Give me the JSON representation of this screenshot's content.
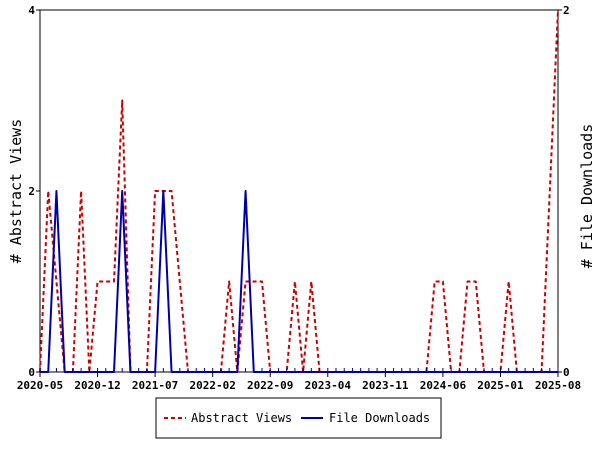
{
  "chart_data": {
    "type": "line",
    "x_tick_labels": [
      "2020-05",
      "2020-12",
      "2021-07",
      "2022-02",
      "2022-09",
      "2023-04",
      "2023-11",
      "2024-06",
      "2025-01",
      "2025-08"
    ],
    "left_axis": {
      "label": "# Abstract Views",
      "range": [
        0,
        4
      ],
      "tick_labels": [
        "0",
        "2",
        "4"
      ]
    },
    "right_axis": {
      "label": "# File Downloads",
      "range": [
        0,
        2
      ],
      "tick_labels": [
        "0",
        "2"
      ]
    },
    "series": [
      {
        "name": "Abstract Views",
        "axis": "left",
        "color": "#cc0000",
        "style": "dashed",
        "x": [
          "2020-05",
          "2020-06",
          "2020-07",
          "2020-08",
          "2020-09",
          "2020-10",
          "2020-11",
          "2020-12",
          "2021-01",
          "2021-02",
          "2021-03",
          "2021-04",
          "2021-05",
          "2021-06",
          "2021-07",
          "2021-08",
          "2021-09",
          "2021-10",
          "2021-11",
          "2021-12",
          "2022-01",
          "2022-02",
          "2022-03",
          "2022-04",
          "2022-05",
          "2022-06",
          "2022-07",
          "2022-08",
          "2022-09",
          "2022-10",
          "2022-11",
          "2022-12",
          "2023-01",
          "2023-02",
          "2023-03",
          "2023-04",
          "2023-05",
          "2023-06",
          "2023-07",
          "2023-08",
          "2023-09",
          "2023-10",
          "2023-11",
          "2023-12",
          "2024-01",
          "2024-02",
          "2024-03",
          "2024-04",
          "2024-05",
          "2024-06",
          "2024-07",
          "2024-08",
          "2024-09",
          "2024-10",
          "2024-11",
          "2024-12",
          "2025-01",
          "2025-02",
          "2025-03",
          "2025-04",
          "2025-05",
          "2025-06",
          "2025-07",
          "2025-08"
        ],
        "values": [
          0,
          2,
          1,
          0,
          0,
          2,
          0,
          1,
          1,
          1,
          3,
          0,
          0,
          0,
          2,
          2,
          2,
          1,
          0,
          0,
          0,
          0,
          0,
          1,
          0,
          1,
          1,
          1,
          0,
          0,
          0,
          1,
          0,
          1,
          0,
          0,
          0,
          0,
          0,
          0,
          0,
          0,
          0,
          0,
          0,
          0,
          0,
          0,
          1,
          1,
          0,
          0,
          1,
          1,
          0,
          0,
          0,
          1,
          0,
          0,
          0,
          0,
          2,
          4
        ]
      },
      {
        "name": "File Downloads",
        "axis": "right",
        "color": "#0000aa",
        "style": "solid",
        "x": [
          "2020-05",
          "2020-06",
          "2020-07",
          "2020-08",
          "2020-09",
          "2020-10",
          "2020-11",
          "2020-12",
          "2021-01",
          "2021-02",
          "2021-03",
          "2021-04",
          "2021-05",
          "2021-06",
          "2021-07",
          "2021-08",
          "2021-09",
          "2021-10",
          "2021-11",
          "2021-12",
          "2022-01",
          "2022-02",
          "2022-03",
          "2022-04",
          "2022-05",
          "2022-06",
          "2022-07",
          "2022-08",
          "2022-09",
          "2022-10",
          "2022-11",
          "2022-12",
          "2023-01",
          "2023-02",
          "2023-03",
          "2023-04",
          "2023-05",
          "2023-06",
          "2023-07",
          "2023-08",
          "2023-09",
          "2023-10",
          "2023-11",
          "2023-12",
          "2024-01",
          "2024-02",
          "2024-03",
          "2024-04",
          "2024-05",
          "2024-06",
          "2024-07",
          "2024-08",
          "2024-09",
          "2024-10",
          "2024-11",
          "2024-12",
          "2025-01",
          "2025-02",
          "2025-03",
          "2025-04",
          "2025-05",
          "2025-06",
          "2025-07",
          "2025-08"
        ],
        "values": [
          0,
          0,
          1,
          0,
          0,
          0,
          0,
          0,
          0,
          0,
          1,
          0,
          0,
          0,
          0,
          1,
          0,
          0,
          0,
          0,
          0,
          0,
          0,
          0,
          0,
          1,
          0,
          0,
          0,
          0,
          0,
          0,
          0,
          0,
          0,
          0,
          0,
          0,
          0,
          0,
          0,
          0,
          0,
          0,
          0,
          0,
          0,
          0,
          0,
          0,
          0,
          0,
          0,
          0,
          0,
          0,
          0,
          0,
          0,
          0,
          0,
          0,
          0,
          0
        ]
      }
    ],
    "legend": {
      "placement": "bottom-center",
      "entries": [
        "Abstract Views",
        "File Downloads"
      ]
    },
    "grid": false
  }
}
